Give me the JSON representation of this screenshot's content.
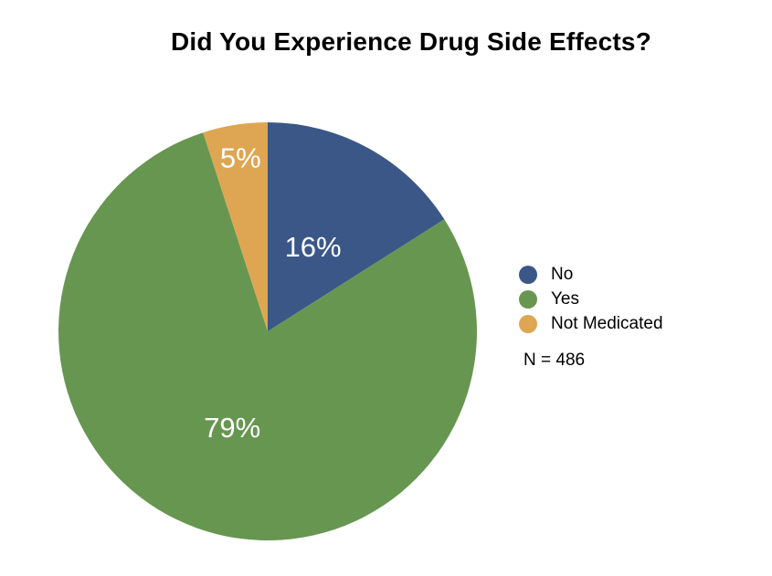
{
  "chart_data": {
    "type": "pie",
    "title": "Did You Experience Drug Side Effects?",
    "categories": [
      "No",
      "Yes",
      "Not Medicated"
    ],
    "values": [
      16,
      79,
      5
    ],
    "labels": [
      "16%",
      "79%",
      "5%"
    ],
    "colors": [
      "#3a5788",
      "#679651",
      "#dea652"
    ],
    "label_color": "#ffffff",
    "start": "12 o'clock",
    "direction": "clockwise",
    "legend_position": "right",
    "note": "N = 486"
  }
}
